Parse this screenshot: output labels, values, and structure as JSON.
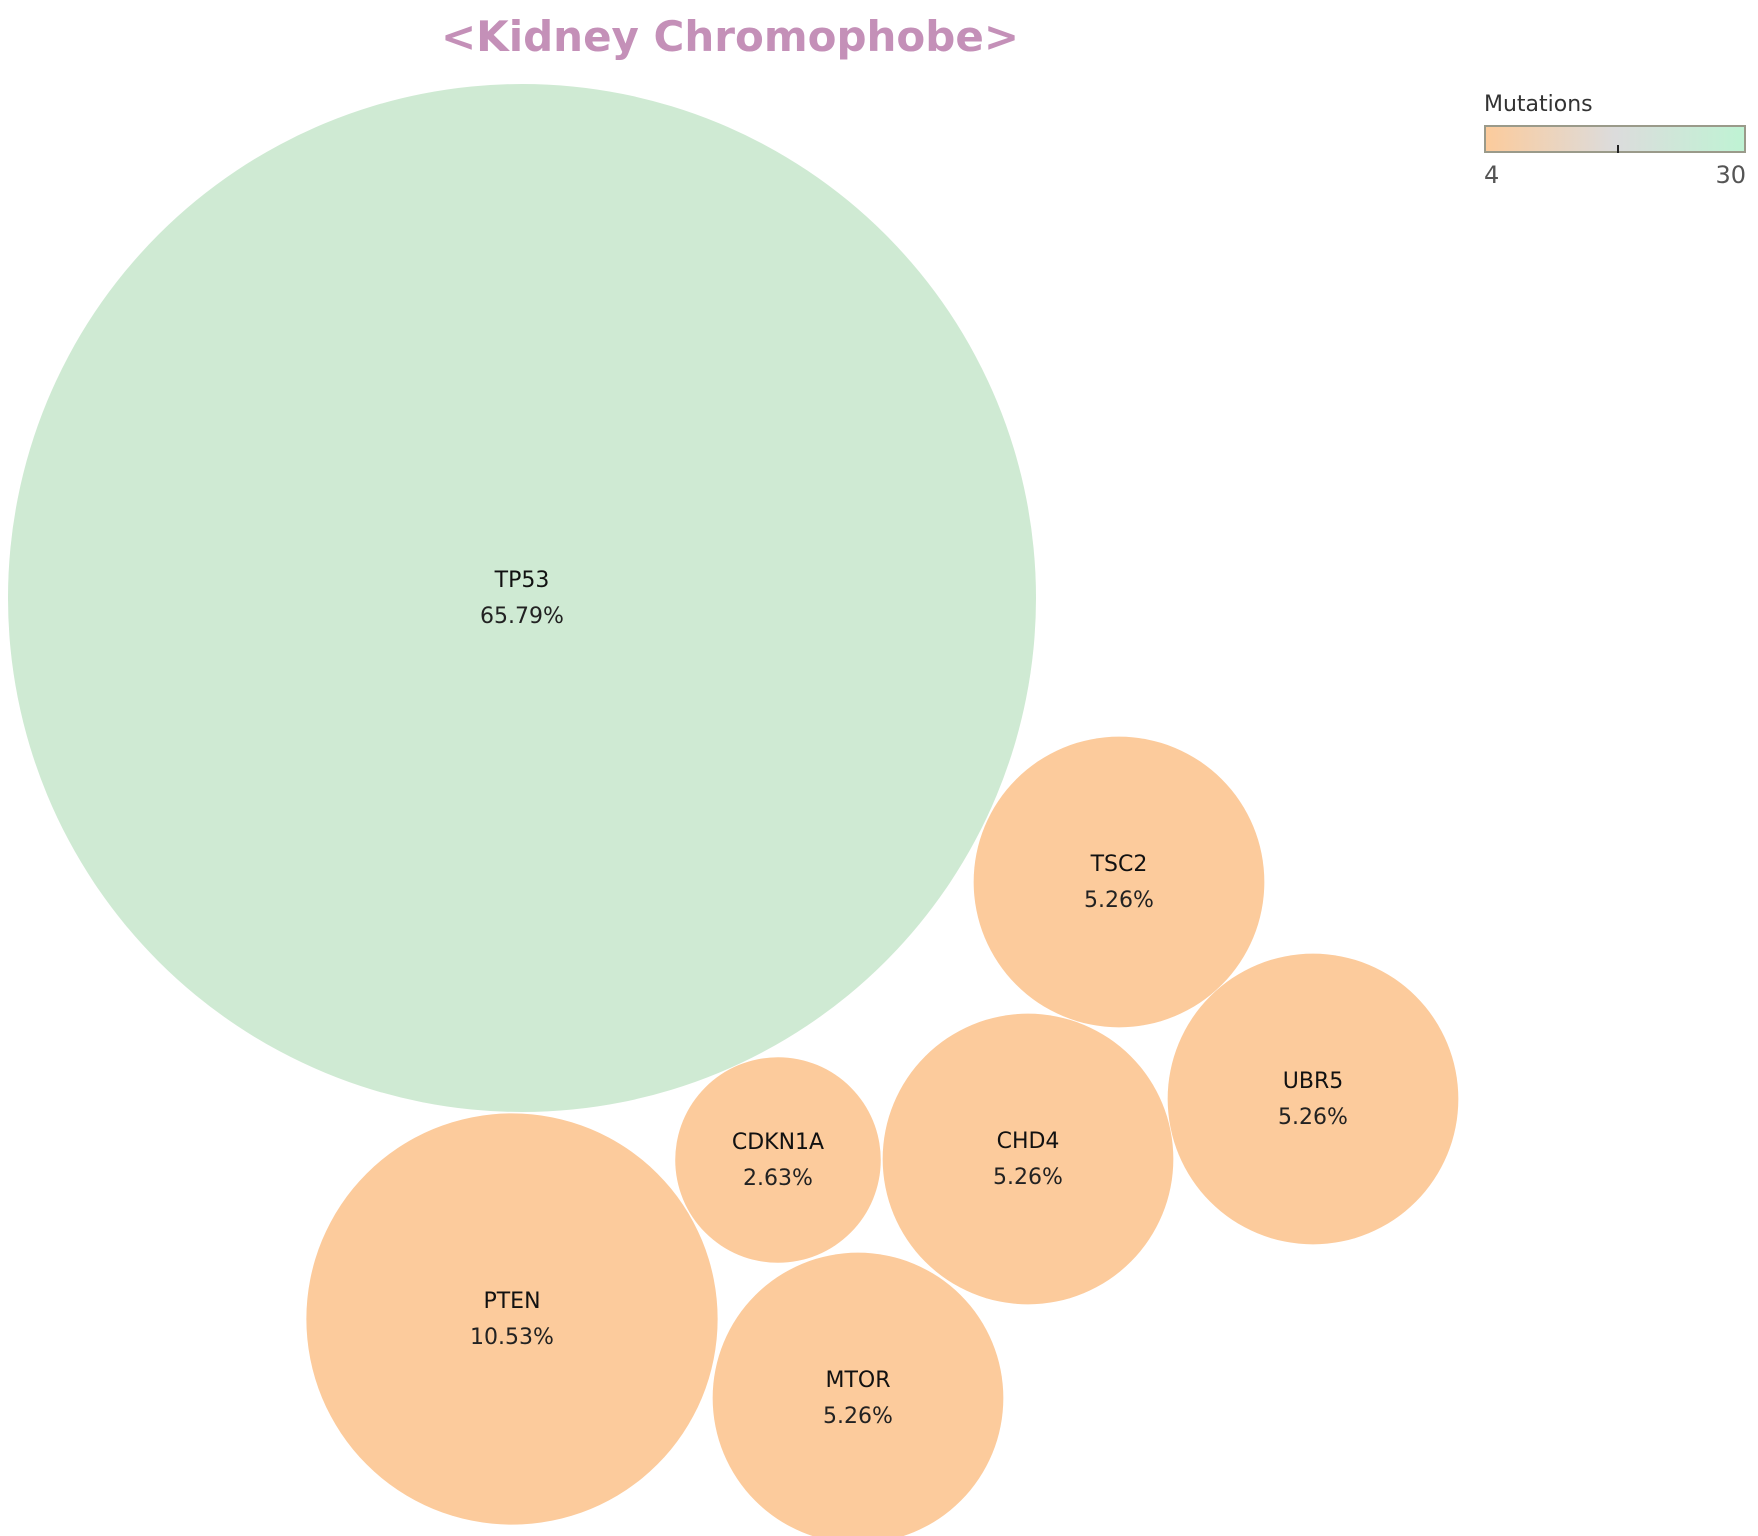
{
  "chart_data": {
    "type": "bubble",
    "title": "<Kidney Chromophobe>",
    "title_color": "#c490b8",
    "legend": {
      "title": "Mutations",
      "min_label": "4",
      "max_label": "30",
      "color_low": "#fccb9c",
      "color_mid": "#dcdcdc",
      "color_high": "#bff3d4",
      "placement": "top-right"
    },
    "bubbles": [
      {
        "gene": "TP53",
        "percent_label": "65.79%",
        "value": 65.79,
        "color": "#cfead3"
      },
      {
        "gene": "PTEN",
        "percent_label": "10.53%",
        "value": 10.53,
        "color": "#fccb9c"
      },
      {
        "gene": "TSC2",
        "percent_label": "5.26%",
        "value": 5.26,
        "color": "#fccb9c"
      },
      {
        "gene": "UBR5",
        "percent_label": "5.26%",
        "value": 5.26,
        "color": "#fccb9c"
      },
      {
        "gene": "CHD4",
        "percent_label": "5.26%",
        "value": 5.26,
        "color": "#fccb9c"
      },
      {
        "gene": "MTOR",
        "percent_label": "5.26%",
        "value": 5.26,
        "color": "#fccb9c"
      },
      {
        "gene": "CDKN1A",
        "percent_label": "2.63%",
        "value": 2.63,
        "color": "#fccb9c"
      }
    ]
  }
}
